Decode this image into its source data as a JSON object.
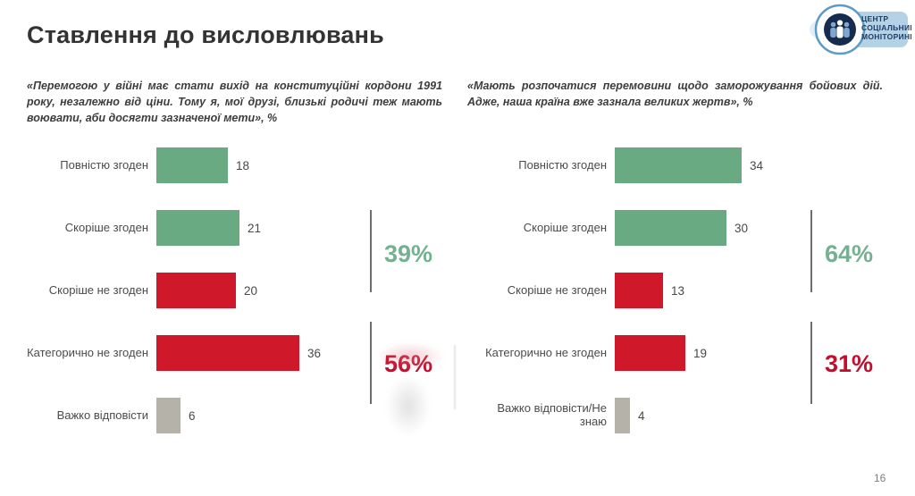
{
  "page": {
    "title": "Ставлення до висловлювань",
    "page_number": "16"
  },
  "logo": {
    "line1": "ЦЕНТР",
    "line2": "СОЦІАЛЬНИЙ",
    "line3": "МОНІТОРИНГ"
  },
  "colors": {
    "agree": "#69aa83",
    "disagree": "#d0182b",
    "neutral": "#b5b2a9",
    "agree_text": "#74b191",
    "disagree_text": "#c30e2e"
  },
  "chart_data": [
    {
      "type": "bar",
      "orientation": "horizontal",
      "title": "«Перемогою у війні має стати вихід на конституційні кордони 1991 року, незалежно від ціни. Тому я, мої друзі, близькі родичі теж мають воювати, аби досягти зазначеної мети», %",
      "categories": [
        "Повністю згоден",
        "Скоріше згоден",
        "Скоріше не згоден",
        "Категорично не згоден",
        "Важко відповісти"
      ],
      "values": [
        18,
        21,
        20,
        36,
        6
      ],
      "bar_groups": [
        "agree",
        "agree",
        "disagree",
        "disagree",
        "neutral"
      ],
      "aggregates": [
        {
          "label": "39%",
          "group": "agree",
          "covers": [
            "Повністю згоден",
            "Скоріше згоден"
          ]
        },
        {
          "label": "56%",
          "group": "disagree",
          "covers": [
            "Скоріше не згоден",
            "Категорично не згоден"
          ]
        }
      ],
      "xlim": [
        0,
        40
      ],
      "value_labels": true,
      "grid": false,
      "legend": false
    },
    {
      "type": "bar",
      "orientation": "horizontal",
      "title": "«Мають розпочатися перемовини щодо заморожування бойових дій. Адже, наша країна вже зазнала великих жертв», %",
      "categories": [
        "Повністю згоден",
        "Скоріше згоден",
        "Скоріше не згоден",
        "Категорично не згоден",
        "Важко відповісти/Не знаю"
      ],
      "values": [
        34,
        30,
        13,
        19,
        4
      ],
      "bar_groups": [
        "agree",
        "agree",
        "disagree",
        "disagree",
        "neutral"
      ],
      "aggregates": [
        {
          "label": "64%",
          "group": "agree",
          "covers": [
            "Повністю згоден",
            "Скоріше згоден"
          ]
        },
        {
          "label": "31%",
          "group": "disagree",
          "covers": [
            "Скоріше не згоден",
            "Категорично не згоден"
          ]
        }
      ],
      "xlim": [
        0,
        40
      ],
      "value_labels": true,
      "grid": false,
      "legend": false
    }
  ]
}
